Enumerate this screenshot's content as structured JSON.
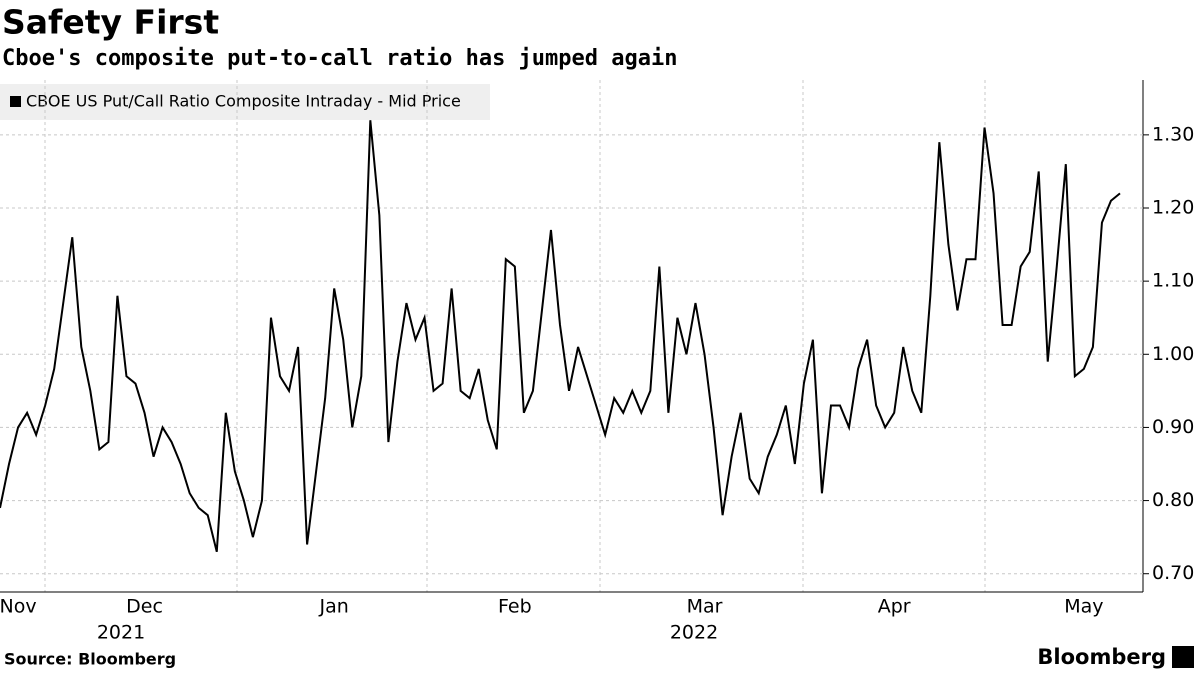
{
  "chart_data": {
    "type": "line",
    "title": "Safety First",
    "subtitle": "Cboe's composite put-to-call ratio has jumped again",
    "source": "Source: Bloomberg",
    "brand": "Bloomberg",
    "categories": [
      null,
      null,
      "Nov",
      null,
      null,
      null,
      null,
      null,
      null,
      null,
      null,
      null,
      null,
      null,
      null,
      null,
      "Dec",
      null,
      null,
      null,
      null,
      null,
      null,
      null,
      null,
      null,
      null,
      null,
      null,
      null,
      null,
      null,
      null,
      null,
      null,
      null,
      null,
      "Jan",
      null,
      null,
      null,
      null,
      null,
      null,
      null,
      null,
      null,
      null,
      null,
      null,
      null,
      null,
      null,
      null,
      null,
      null,
      null,
      "Feb",
      null,
      null,
      null,
      null,
      null,
      null,
      null,
      null,
      null,
      null,
      null,
      null,
      null,
      null,
      null,
      null,
      null,
      null,
      null,
      null,
      "Mar",
      null,
      null,
      null,
      null,
      null,
      null,
      null,
      null,
      null,
      null,
      null,
      null,
      null,
      null,
      null,
      null,
      null,
      null,
      null,
      null,
      "Apr",
      null,
      null,
      null,
      null,
      null,
      null,
      null,
      null,
      null,
      null,
      null,
      null,
      null,
      null,
      null,
      null,
      null,
      null,
      null,
      null,
      "May",
      null,
      null,
      null,
      null
    ],
    "years": [
      "2021",
      "2022"
    ],
    "series": [
      {
        "name": "CBOE US Put/Call Ratio Composite Intraday - Mid Price",
        "color": "#000000",
        "values": [
          0.79,
          0.85,
          0.9,
          0.92,
          0.89,
          0.93,
          0.98,
          1.07,
          1.16,
          1.01,
          0.95,
          0.87,
          0.88,
          1.08,
          0.97,
          0.96,
          0.92,
          0.86,
          0.9,
          0.88,
          0.85,
          0.81,
          0.79,
          0.78,
          0.73,
          0.92,
          0.84,
          0.8,
          0.75,
          0.8,
          1.05,
          0.97,
          0.95,
          1.01,
          0.74,
          0.84,
          0.94,
          1.09,
          1.02,
          0.9,
          0.97,
          1.32,
          1.19,
          0.88,
          0.99,
          1.07,
          1.02,
          1.05,
          0.95,
          0.96,
          1.09,
          0.95,
          0.94,
          0.98,
          0.91,
          0.87,
          1.13,
          1.12,
          0.92,
          0.95,
          1.06,
          1.17,
          1.04,
          0.95,
          1.01,
          0.97,
          0.93,
          0.89,
          0.94,
          0.92,
          0.95,
          0.92,
          0.95,
          1.12,
          0.92,
          1.05,
          1.0,
          1.07,
          1.0,
          0.9,
          0.78,
          0.86,
          0.92,
          0.83,
          0.81,
          0.86,
          0.89,
          0.93,
          0.85,
          0.96,
          1.02,
          0.81,
          0.93,
          0.93,
          0.9,
          0.98,
          1.02,
          0.93,
          0.9,
          0.92,
          1.01,
          0.95,
          0.92,
          1.08,
          1.29,
          1.15,
          1.06,
          1.13,
          1.13,
          1.31,
          1.22,
          1.04,
          1.04,
          1.12,
          1.14,
          1.25,
          0.99,
          1.12,
          1.26,
          0.97,
          0.98,
          1.01,
          1.18,
          1.21,
          1.22
        ]
      }
    ],
    "ylim": [
      0.675,
      1.375
    ],
    "yticks": [
      {
        "value": 0.7,
        "label": "0.70"
      },
      {
        "value": 0.8,
        "label": "0.80"
      },
      {
        "value": 0.9,
        "label": "0.90"
      },
      {
        "value": 1.0,
        "label": "1.00"
      },
      {
        "value": 1.1,
        "label": "1.10"
      },
      {
        "value": 1.2,
        "label": "1.20"
      },
      {
        "value": 1.3,
        "label": "1.30"
      }
    ],
    "grid": true
  }
}
